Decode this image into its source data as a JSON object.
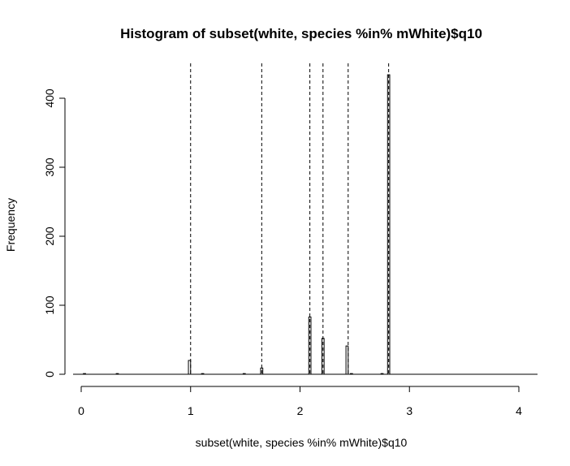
{
  "chart_data": {
    "type": "bar",
    "title": "Histogram of subset(white, species %in% mWhite)$q10",
    "xlabel": "subset(white, species %in% mWhite)$q10",
    "ylabel": "Frequency",
    "xlim": [
      0,
      4.1
    ],
    "ylim": [
      0,
      440
    ],
    "x_ticks": [
      0,
      1,
      2,
      3,
      4
    ],
    "y_ticks": [
      0,
      100,
      200,
      300,
      400
    ],
    "bin_width": 0.02,
    "bins": [
      {
        "x": 0.03,
        "count": 1
      },
      {
        "x": 0.33,
        "count": 1
      },
      {
        "x": 0.99,
        "count": 20
      },
      {
        "x": 1.11,
        "count": 1
      },
      {
        "x": 1.49,
        "count": 1
      },
      {
        "x": 1.65,
        "count": 9
      },
      {
        "x": 2.09,
        "count": 83
      },
      {
        "x": 2.21,
        "count": 52
      },
      {
        "x": 2.43,
        "count": 41
      },
      {
        "x": 2.47,
        "count": 1
      },
      {
        "x": 2.75,
        "count": 1
      },
      {
        "x": 2.81,
        "count": 434
      }
    ],
    "reference_lines_x": [
      1.0,
      1.65,
      2.09,
      2.21,
      2.44,
      2.81
    ],
    "grid": false,
    "legend": "none"
  }
}
